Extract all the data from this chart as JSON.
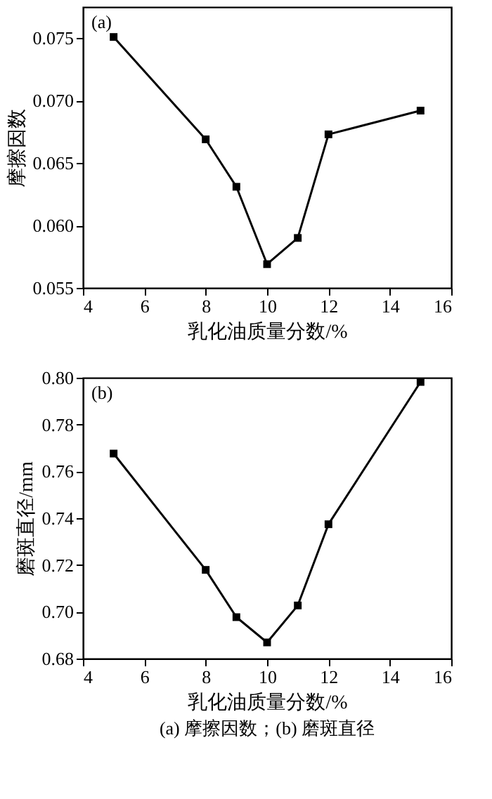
{
  "chart_data": [
    {
      "type": "line",
      "xlabel": "乳化油质量分数/%",
      "ylabel": "摩擦因数",
      "annotations": [
        "(a)"
      ],
      "x": [
        5,
        8,
        9,
        10,
        11,
        12,
        15
      ],
      "series": [
        {
          "color": "#000000",
          "values": [
            0.0751,
            0.0669,
            0.0631,
            0.0569,
            0.059,
            0.0673,
            0.0692
          ]
        }
      ],
      "xlim": [
        4,
        16
      ],
      "xticks": [
        4,
        6,
        8,
        10,
        12,
        14,
        16
      ],
      "ylim": [
        0.055,
        0.0775
      ],
      "yticks": [
        0.055,
        {
          "value": 0.06,
          "label": "0.060"
        },
        0.065,
        {
          "value": 0.07,
          "label": "0.070"
        },
        0.075
      ],
      "grid": false,
      "marker": "square",
      "line_style": "solid"
    },
    {
      "type": "line",
      "xlabel": "乳化油质量分数/%",
      "ylabel": "磨斑直径/mm",
      "annotations": [
        "(b)",
        "(a) 摩擦因数；(b) 磨斑直径"
      ],
      "x": [
        5,
        8,
        9,
        10,
        11,
        12,
        15
      ],
      "series": [
        {
          "color": "#000000",
          "values": [
            0.7676,
            0.7179,
            0.6977,
            0.6869,
            0.7027,
            0.7374,
            0.7982
          ]
        }
      ],
      "xlim": [
        4,
        16
      ],
      "xticks": [
        4,
        6,
        8,
        10,
        12,
        14,
        16
      ],
      "ylim": [
        0.68,
        0.8
      ],
      "yticks": [
        0.68,
        {
          "value": 0.7,
          "label": "0.70"
        },
        0.72,
        0.74,
        0.76,
        0.78,
        {
          "value": 0.8,
          "label": "0.80"
        }
      ],
      "grid": false,
      "marker": "square",
      "line_style": "solid"
    }
  ]
}
